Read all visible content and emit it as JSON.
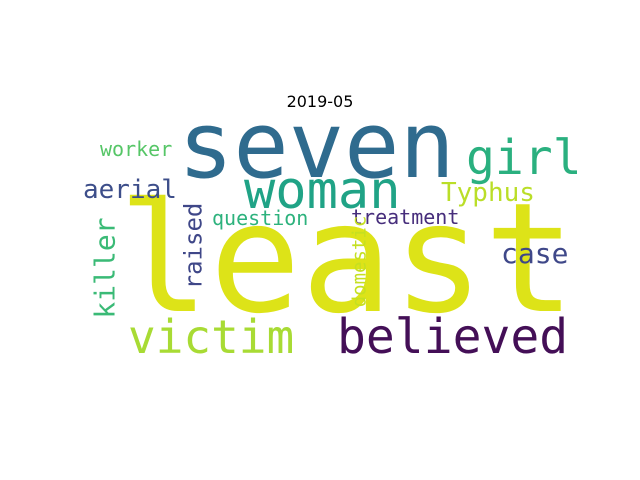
{
  "title": "2019-05",
  "words": [
    {
      "text": "least",
      "color": "#dde318",
      "orientation": "horizontal"
    },
    {
      "text": "seven",
      "color": "#2f6b8e",
      "orientation": "horizontal"
    },
    {
      "text": "woman",
      "color": "#20a386",
      "orientation": "horizontal"
    },
    {
      "text": "girl",
      "color": "#2ab07f",
      "orientation": "horizontal"
    },
    {
      "text": "victim",
      "color": "#a8db34",
      "orientation": "horizontal"
    },
    {
      "text": "believed",
      "color": "#440f57",
      "orientation": "horizontal"
    },
    {
      "text": "Typhus",
      "color": "#bade28",
      "orientation": "horizontal"
    },
    {
      "text": "aerial",
      "color": "#3d4e8a",
      "orientation": "horizontal"
    },
    {
      "text": "case",
      "color": "#3f4889",
      "orientation": "horizontal"
    },
    {
      "text": "worker",
      "color": "#56c667",
      "orientation": "horizontal"
    },
    {
      "text": "question",
      "color": "#2db27d",
      "orientation": "horizontal"
    },
    {
      "text": "treatment",
      "color": "#472e7c",
      "orientation": "horizontal"
    },
    {
      "text": "killer",
      "color": "#3aba76",
      "orientation": "vertical"
    },
    {
      "text": "raised",
      "color": "#3f4788",
      "orientation": "vertical"
    },
    {
      "text": "domestic",
      "color": "#c5e021",
      "orientation": "vertical"
    }
  ]
}
